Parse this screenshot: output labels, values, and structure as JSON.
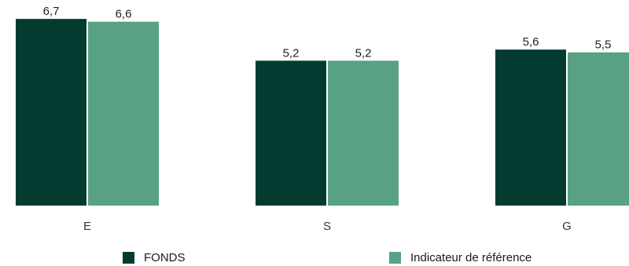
{
  "chart_data": {
    "type": "bar",
    "categories": [
      "E",
      "S",
      "G"
    ],
    "series": [
      {
        "name": "FONDS",
        "values": [
          6.7,
          5.2,
          5.6
        ],
        "labels": [
          "6,7",
          "5,2",
          "5,6"
        ],
        "color": "#033b30"
      },
      {
        "name": "Indicateur de référence",
        "values": [
          6.6,
          5.2,
          5.5
        ],
        "labels": [
          "6,6",
          "5,2",
          "5,5"
        ],
        "color": "#59a185"
      }
    ],
    "ylim": [
      0,
      6.9
    ],
    "grid": false,
    "legend": "bottom"
  }
}
